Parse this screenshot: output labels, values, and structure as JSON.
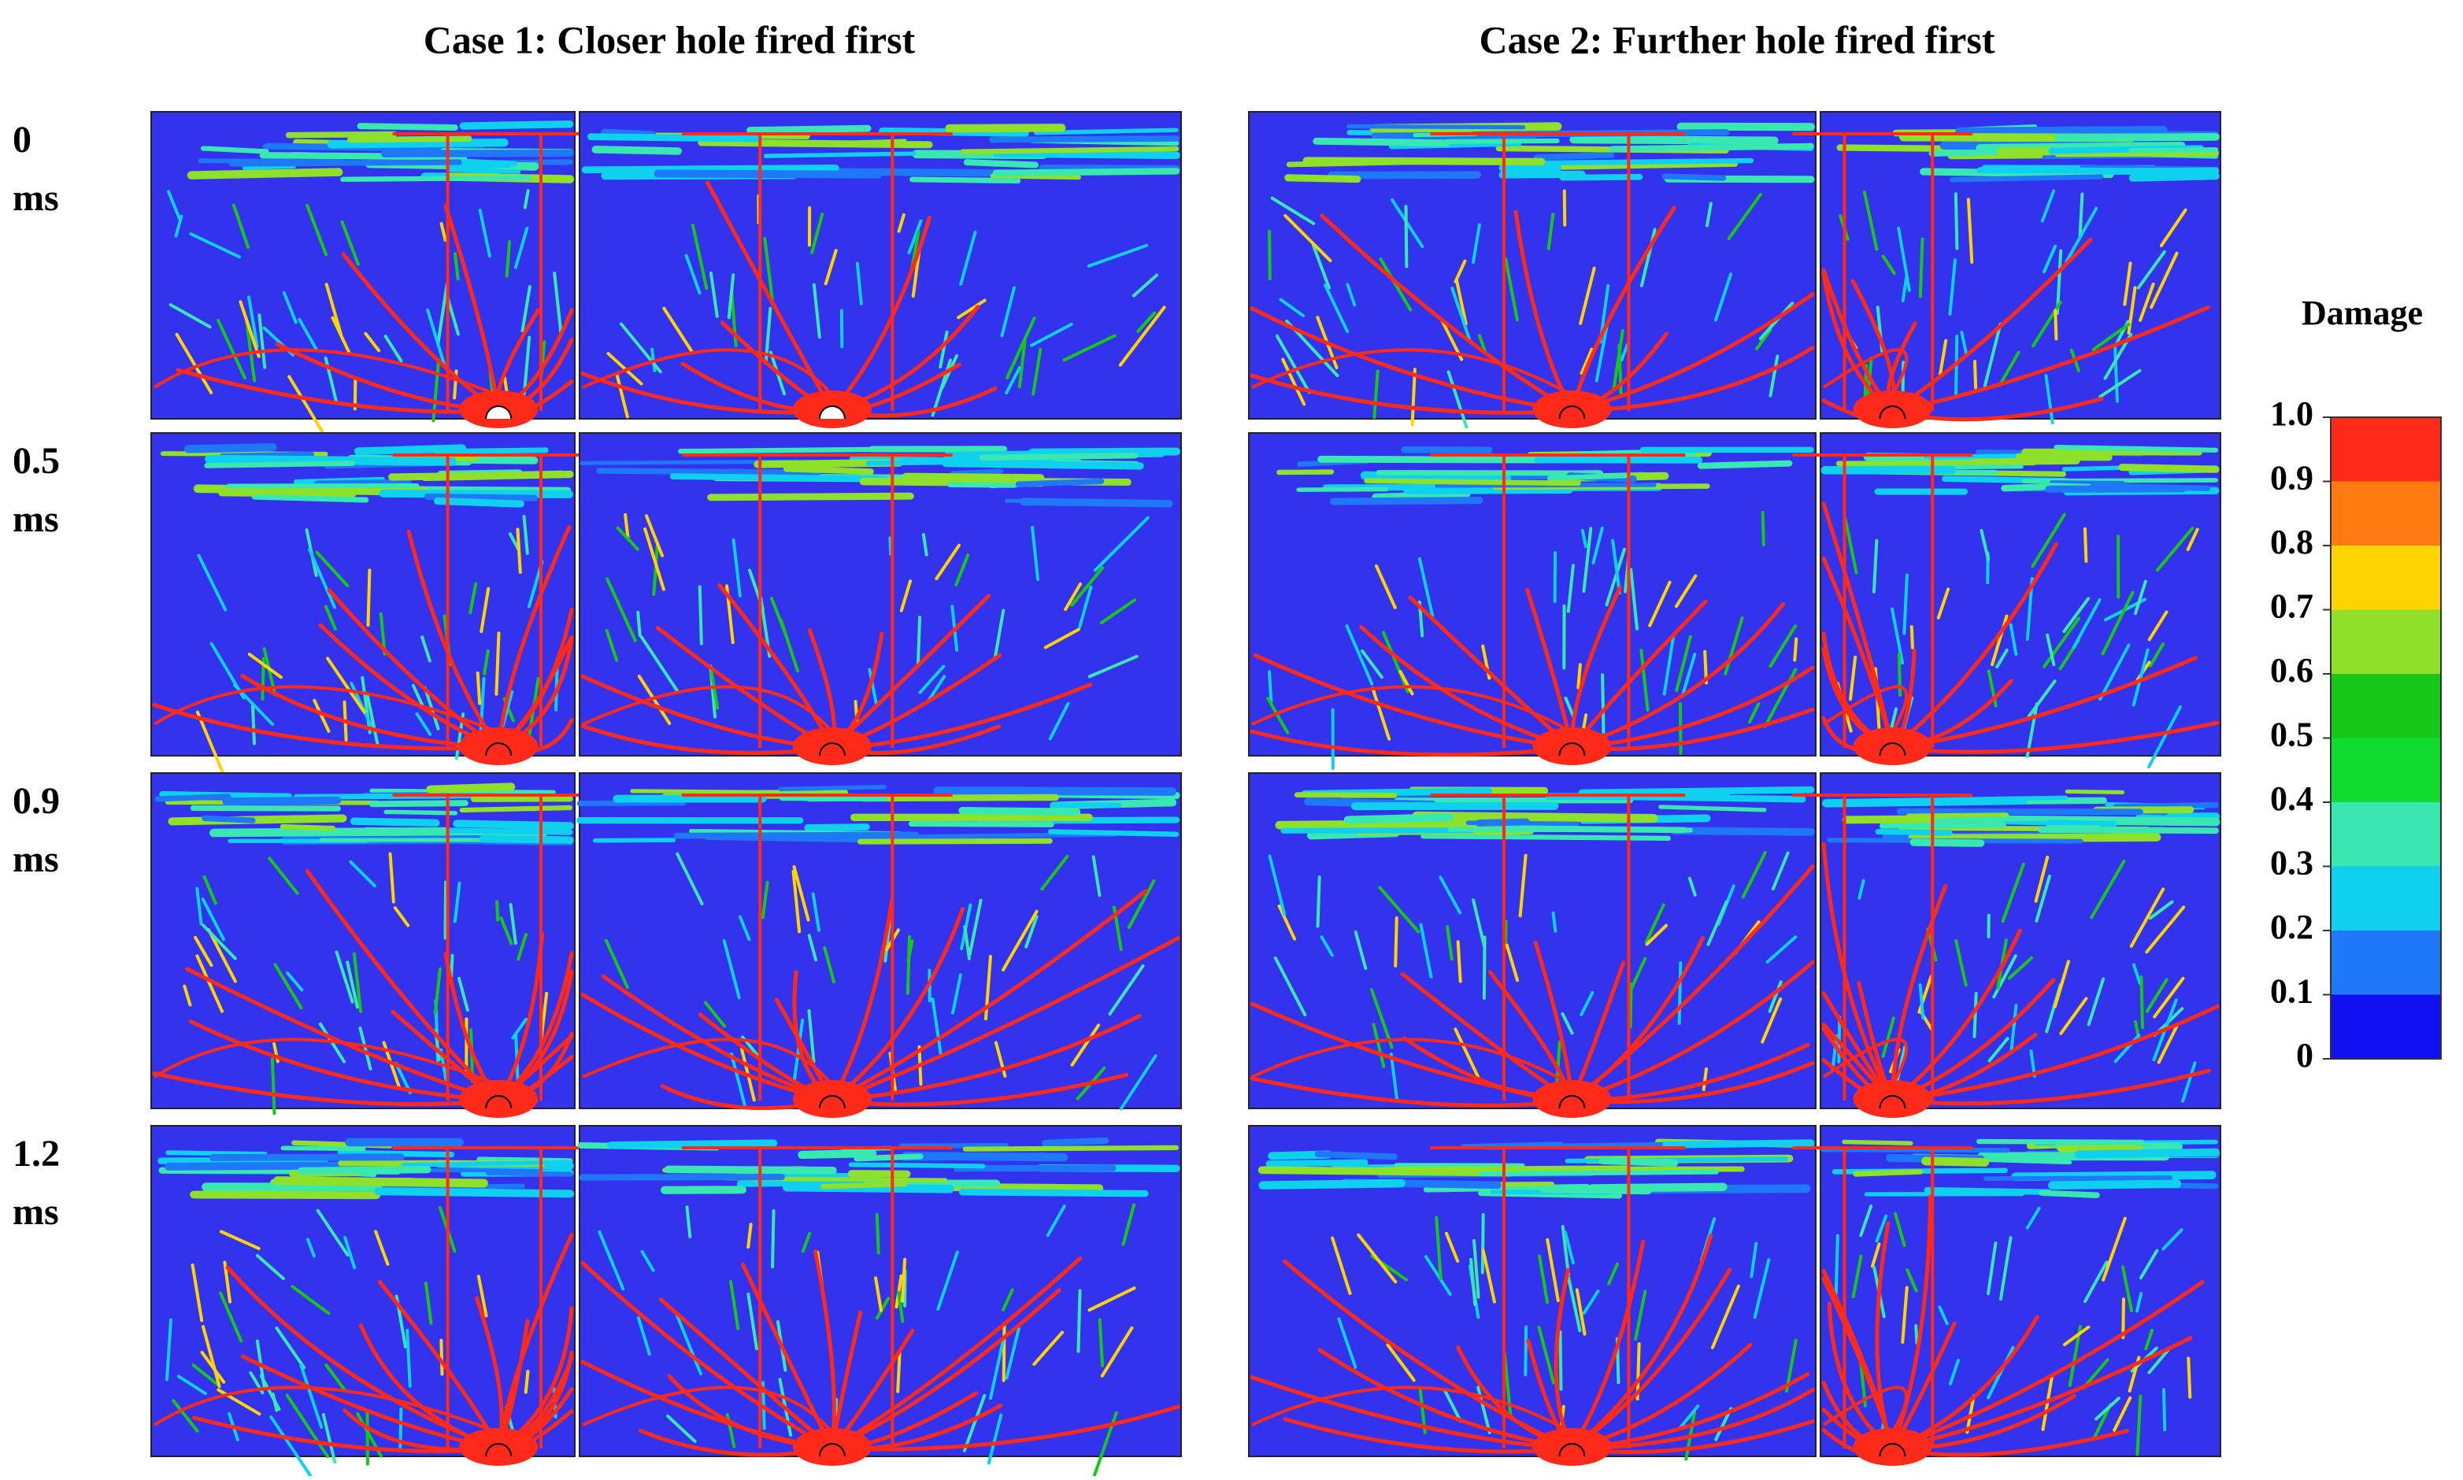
{
  "columns": [
    "Case 1: Closer hole fired first",
    "Case 2: Further hole fired first"
  ],
  "rows": [
    {
      "time": "0",
      "unit": "ms"
    },
    {
      "time": "0.5",
      "unit": "ms"
    },
    {
      "time": "0.9",
      "unit": "ms"
    },
    {
      "time": "1.2",
      "unit": "ms"
    }
  ],
  "colorbar": {
    "title": "Damage",
    "ticks": [
      {
        "value": 1,
        "label": "1.0"
      },
      0.9,
      0.8,
      0.7,
      0.6,
      0.5,
      0.4,
      0.3,
      0.2,
      0.1,
      0
    ],
    "colors": [
      "#ff2a1a",
      "#ff7a10",
      "#ffd400",
      "#8ee028",
      "#18c818",
      "#10dc30",
      "#38e8b0",
      "#10d0f0",
      "#1e78f8",
      "#1010f0"
    ]
  }
}
